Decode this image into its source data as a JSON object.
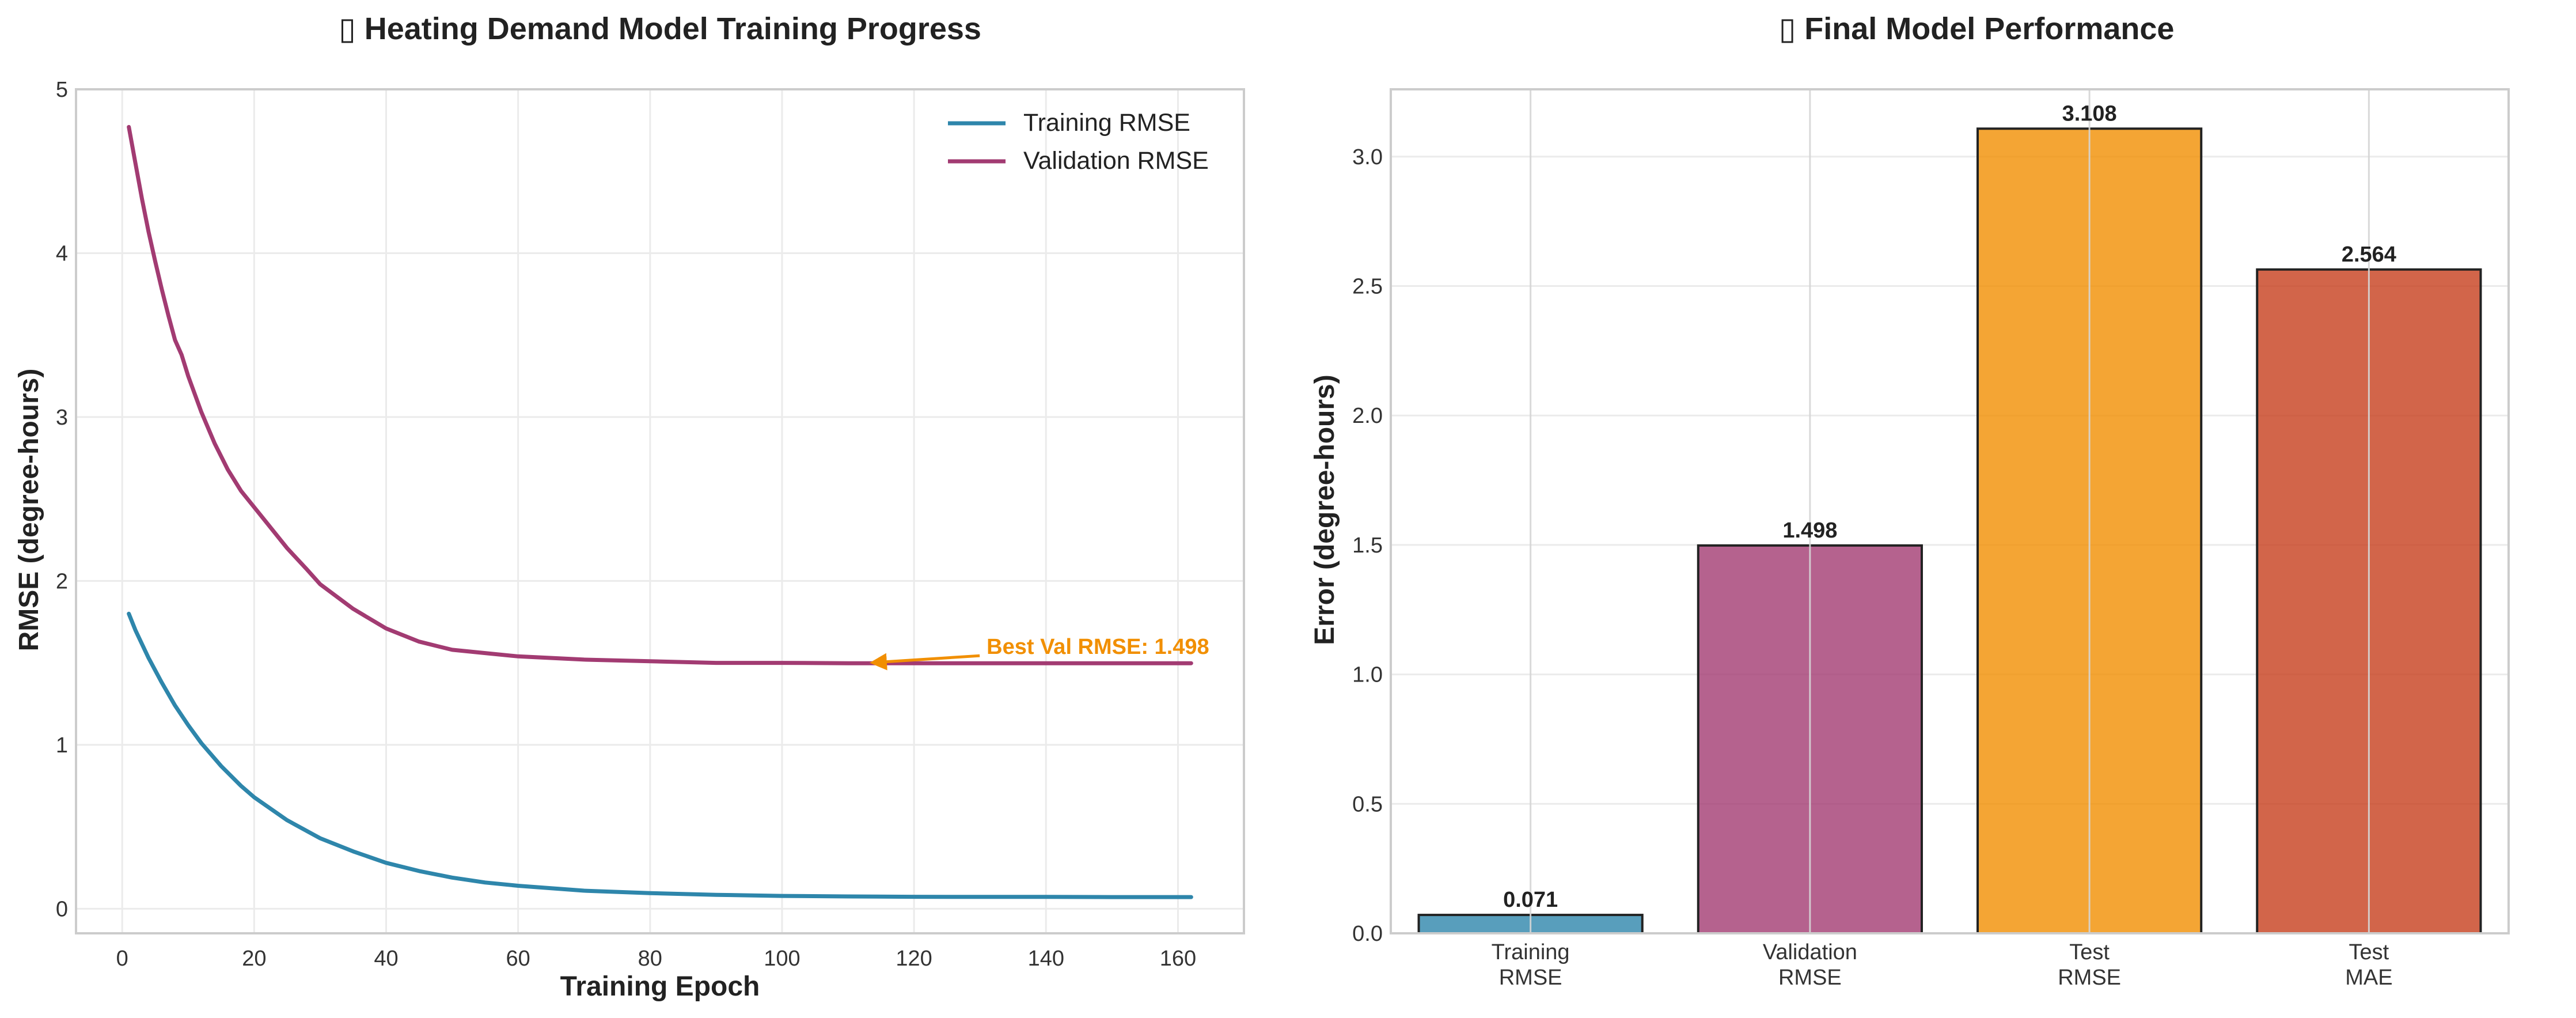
{
  "chart_data": [
    {
      "type": "line",
      "title": "▯ Heating Demand Model Training Progress",
      "xlabel": "Training Epoch",
      "ylabel": "RMSE (degree-hours)",
      "xlim": [
        -7,
        170
      ],
      "ylim": [
        -0.15,
        5.0
      ],
      "xticks": [
        0,
        20,
        40,
        60,
        80,
        100,
        120,
        140,
        160
      ],
      "yticks": [
        0,
        1,
        2,
        3,
        4,
        5
      ],
      "grid": true,
      "legend_position": "top-right",
      "series": [
        {
          "name": "Training RMSE",
          "color": "#2e86ab",
          "x": [
            1,
            2,
            4,
            6,
            8,
            10,
            12,
            15,
            18,
            20,
            25,
            30,
            35,
            40,
            45,
            50,
            55,
            60,
            70,
            80,
            90,
            100,
            110,
            120,
            130,
            140,
            150,
            162
          ],
          "y": [
            1.8,
            1.7,
            1.53,
            1.38,
            1.24,
            1.12,
            1.01,
            0.87,
            0.75,
            0.68,
            0.54,
            0.43,
            0.35,
            0.28,
            0.23,
            0.19,
            0.16,
            0.14,
            0.11,
            0.095,
            0.085,
            0.078,
            0.075,
            0.073,
            0.072,
            0.072,
            0.071,
            0.071
          ]
        },
        {
          "name": "Validation RMSE",
          "color": "#a23b72",
          "x": [
            1,
            2,
            3,
            4,
            5,
            6,
            7,
            8,
            9,
            10,
            12,
            14,
            16,
            18,
            20,
            22,
            25,
            28,
            30,
            35,
            40,
            45,
            50,
            55,
            60,
            70,
            80,
            90,
            100,
            110,
            120,
            130,
            140,
            150,
            162
          ],
          "y": [
            4.77,
            4.55,
            4.33,
            4.13,
            3.95,
            3.78,
            3.62,
            3.47,
            3.38,
            3.25,
            3.03,
            2.84,
            2.68,
            2.55,
            2.45,
            2.35,
            2.2,
            2.07,
            1.98,
            1.83,
            1.71,
            1.63,
            1.58,
            1.56,
            1.54,
            1.52,
            1.51,
            1.5,
            1.5,
            1.498,
            1.498,
            1.498,
            1.498,
            1.498,
            1.498
          ]
        }
      ],
      "annotation": {
        "text": "Best Val RMSE: 1.498",
        "color": "#f18f01",
        "point": [
          113,
          1.498
        ],
        "text_at": [
          131,
          1.6
        ]
      }
    },
    {
      "type": "bar",
      "title": "▯ Final Model Performance",
      "xlabel": "",
      "ylabel": "Error (degree-hours)",
      "ylim": [
        0,
        3.26
      ],
      "yticks": [
        0.0,
        0.5,
        1.0,
        1.5,
        2.0,
        2.5,
        3.0
      ],
      "grid": true,
      "categories": [
        [
          "Training",
          "RMSE"
        ],
        [
          "Validation",
          "RMSE"
        ],
        [
          "Test",
          "RMSE"
        ],
        [
          "Test",
          "MAE"
        ]
      ],
      "values": [
        0.071,
        1.498,
        3.108,
        2.564
      ],
      "value_labels": [
        "0.071",
        "1.498",
        "3.108",
        "2.564"
      ],
      "colors": [
        "#2e86ab",
        "#a23b72",
        "#f18f01",
        "#c73e1d"
      ]
    }
  ]
}
